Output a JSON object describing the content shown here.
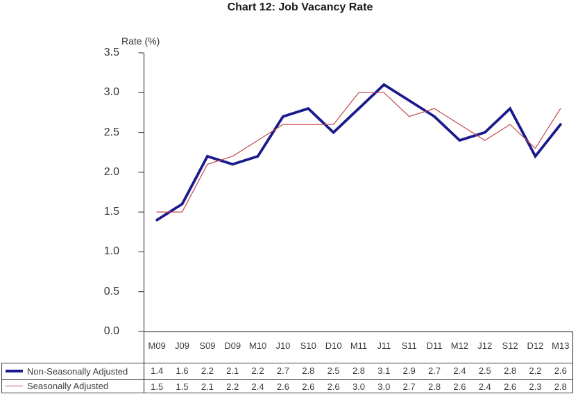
{
  "title": "Chart 12: Job Vacancy Rate",
  "chart_data": {
    "type": "line",
    "title": "Chart 12: Job Vacancy Rate",
    "ylabel": "Rate (%)",
    "xlabel": "",
    "ylim": [
      0,
      3.5
    ],
    "y_ticks": [
      3.5,
      3.0,
      2.5,
      2.0,
      1.5,
      1.0,
      0.5,
      0.0
    ],
    "grid": false,
    "legend_position": "bottom-table-left",
    "categories": [
      "M09",
      "J09",
      "S09",
      "D09",
      "M10",
      "J10",
      "S10",
      "D10",
      "M11",
      "J11",
      "S11",
      "D11",
      "M12",
      "J12",
      "S12",
      "D12",
      "M13"
    ],
    "series": [
      {
        "name": "Non-Seasonally Adjusted",
        "color": "#1a1a8c",
        "stroke_width": 3.8,
        "values": [
          1.4,
          1.6,
          2.2,
          2.1,
          2.2,
          2.7,
          2.8,
          2.5,
          2.8,
          3.1,
          2.9,
          2.7,
          2.4,
          2.5,
          2.8,
          2.2,
          2.6
        ]
      },
      {
        "name": "Seasonally Adjusted",
        "color": "#c34a4a",
        "stroke_width": 1.2,
        "values": [
          1.5,
          1.5,
          2.1,
          2.2,
          2.4,
          2.6,
          2.6,
          2.6,
          3.0,
          3.0,
          2.7,
          2.8,
          2.6,
          2.4,
          2.6,
          2.3,
          2.8
        ]
      }
    ]
  },
  "colors": {
    "axis": "#4a4a4a",
    "table_border": "#404040",
    "text": "#3a3a3a",
    "title": "#1a1a1a"
  }
}
